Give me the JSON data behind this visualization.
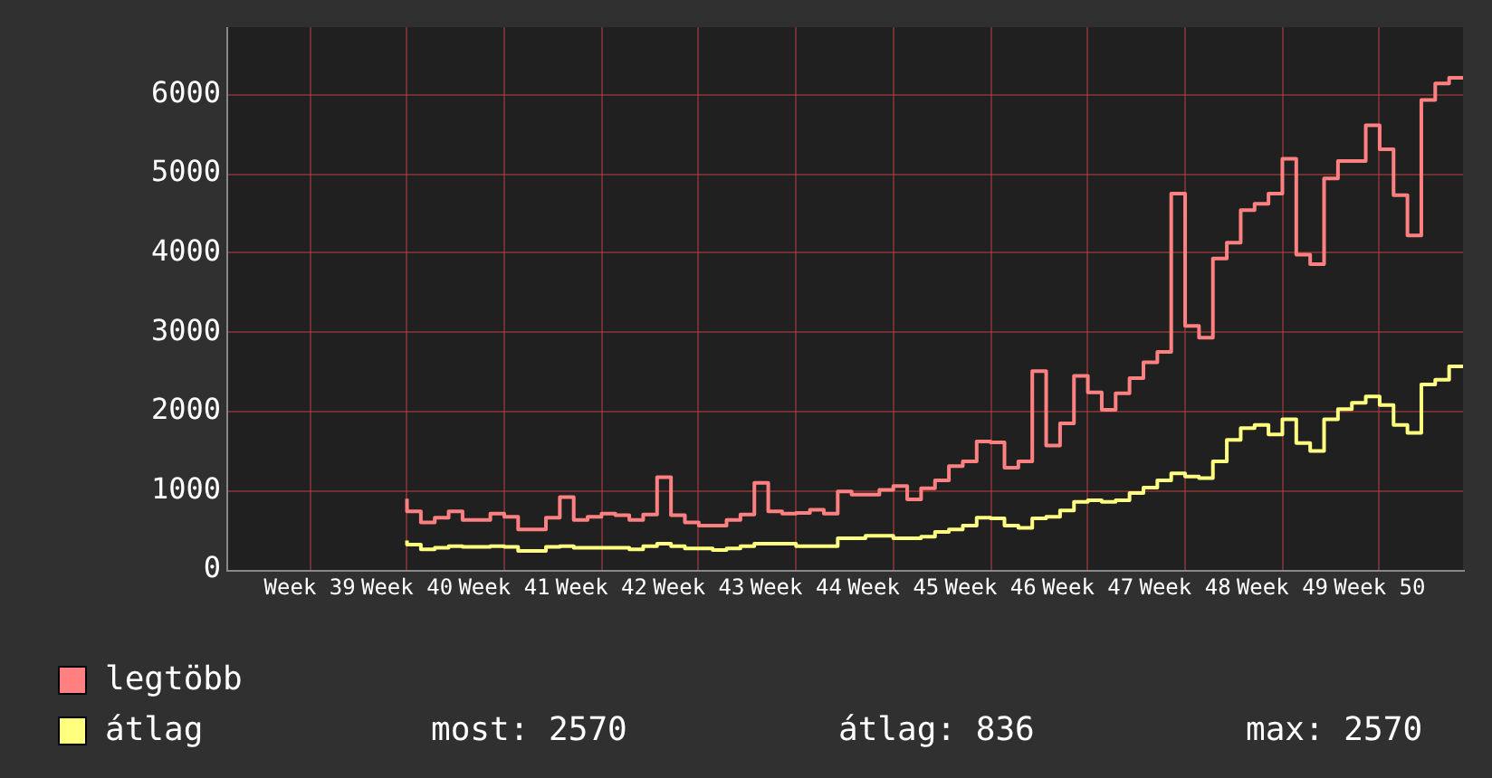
{
  "chart_data": {
    "type": "step",
    "categories": [
      null,
      null,
      null,
      null,
      null,
      null,
      "Week 39",
      null,
      null,
      null,
      null,
      null,
      null,
      "Week 40",
      null,
      null,
      null,
      null,
      null,
      null,
      "Week 41",
      null,
      null,
      null,
      null,
      null,
      null,
      "Week 42",
      null,
      null,
      null,
      null,
      null,
      null,
      "Week 43",
      null,
      null,
      null,
      null,
      null,
      null,
      "Week 44",
      null,
      null,
      null,
      null,
      null,
      null,
      "Week 45",
      null,
      null,
      null,
      null,
      null,
      null,
      "Week 46",
      null,
      null,
      null,
      null,
      null,
      null,
      "Week 47",
      null,
      null,
      null,
      null,
      null,
      null,
      "Week 48",
      null,
      null,
      null,
      null,
      null,
      null,
      "Week 49",
      null,
      null,
      null,
      null,
      null,
      null,
      "Week 50",
      null,
      null,
      null,
      null,
      null,
      null
    ],
    "series": [
      {
        "name": "legtöbb",
        "color": "#ff8080",
        "values": [
          null,
          null,
          null,
          null,
          null,
          null,
          null,
          null,
          null,
          null,
          null,
          null,
          null,
          900,
          740,
          600,
          660,
          740,
          630,
          630,
          710,
          670,
          510,
          510,
          660,
          920,
          630,
          670,
          710,
          690,
          630,
          700,
          1170,
          690,
          600,
          560,
          560,
          630,
          700,
          1100,
          740,
          710,
          720,
          760,
          710,
          990,
          950,
          950,
          1010,
          1060,
          890,
          1030,
          1130,
          1310,
          1370,
          1620,
          1610,
          1290,
          1370,
          2510,
          1570,
          1850,
          2450,
          2240,
          2020,
          2230,
          2420,
          2620,
          2750,
          4750,
          3080,
          2930,
          3930,
          4130,
          4540,
          4620,
          4750,
          5190,
          3980,
          3860,
          4940,
          5160,
          5160,
          5610,
          5310,
          4730,
          4220,
          5930,
          6140,
          6210
        ]
      },
      {
        "name": "átlag",
        "color": "#ffff80",
        "values": [
          null,
          null,
          null,
          null,
          null,
          null,
          null,
          null,
          null,
          null,
          null,
          null,
          null,
          370,
          320,
          260,
          280,
          300,
          290,
          290,
          300,
          290,
          240,
          240,
          290,
          300,
          280,
          280,
          280,
          280,
          260,
          300,
          330,
          300,
          270,
          270,
          250,
          270,
          300,
          330,
          330,
          330,
          300,
          300,
          300,
          400,
          400,
          430,
          430,
          400,
          400,
          420,
          480,
          510,
          560,
          660,
          650,
          560,
          530,
          650,
          670,
          750,
          860,
          880,
          860,
          880,
          970,
          1040,
          1130,
          1220,
          1180,
          1160,
          1370,
          1640,
          1790,
          1830,
          1710,
          1900,
          1600,
          1500,
          1900,
          2030,
          2110,
          2190,
          2080,
          1830,
          1730,
          2340,
          2400,
          2570
        ]
      }
    ],
    "ylim": [
      0,
      6850
    ],
    "yticks": [
      0,
      1000,
      2000,
      3000,
      4000,
      5000,
      6000
    ],
    "grid": true,
    "legend": "bottom",
    "marker": "none",
    "annotations": [
      "most: 2570",
      "átlag: 836",
      "max: 2570"
    ]
  }
}
